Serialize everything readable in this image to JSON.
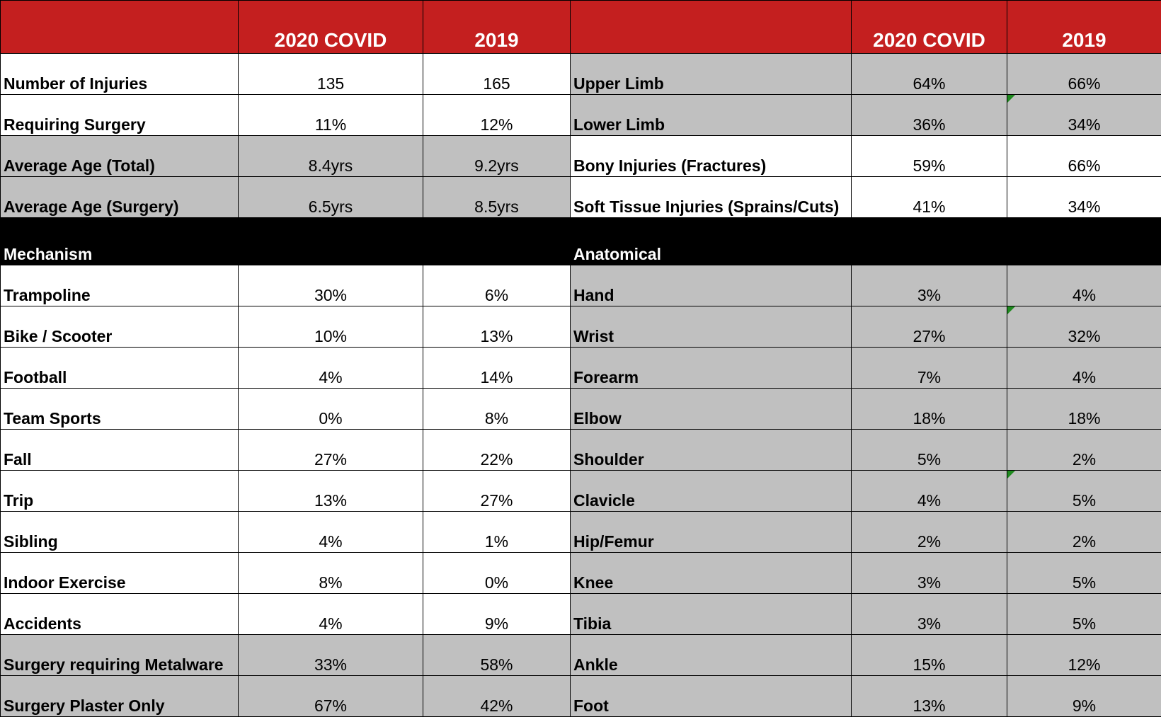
{
  "header": {
    "col_a": "",
    "col_b": "2020 COVID",
    "col_c": "2019",
    "col_d": "",
    "col_e": "2020 COVID",
    "col_f": "2019"
  },
  "summary_rows": [
    {
      "left_label": "Number of Injuries",
      "left_2020": "135",
      "left_2019": "165",
      "right_label": "Upper Limb",
      "right_2020": "64%",
      "right_2019": "66%"
    },
    {
      "left_label": "Requiring Surgery",
      "left_2020": "11%",
      "left_2019": "12%",
      "right_label": "Lower Limb",
      "right_2020": "36%",
      "right_2019": "34%"
    },
    {
      "left_label": "Average Age (Total)",
      "left_2020": "8.4yrs",
      "left_2019": "9.2yrs",
      "right_label": "Bony Injuries (Fractures)",
      "right_2020": "59%",
      "right_2019": "66%"
    },
    {
      "left_label": "Average Age (Surgery)",
      "left_2020": "6.5yrs",
      "left_2019": "8.5yrs",
      "right_label": "Soft Tissue Injuries (Sprains/Cuts)",
      "right_2020": "41%",
      "right_2019": "34%"
    }
  ],
  "section": {
    "left_title": "Mechanism",
    "right_title": "Anatomical"
  },
  "detail_rows": [
    {
      "left_label": "Trampoline",
      "left_2020": "30%",
      "left_2019": "6%",
      "right_label": "Hand",
      "right_2020": "3%",
      "right_2019": "4%"
    },
    {
      "left_label": "Bike / Scooter",
      "left_2020": "10%",
      "left_2019": "13%",
      "right_label": "Wrist",
      "right_2020": "27%",
      "right_2019": "32%"
    },
    {
      "left_label": "Football",
      "left_2020": "4%",
      "left_2019": "14%",
      "right_label": "Forearm",
      "right_2020": "7%",
      "right_2019": "4%"
    },
    {
      "left_label": "Team Sports",
      "left_2020": "0%",
      "left_2019": "8%",
      "right_label": "Elbow",
      "right_2020": "18%",
      "right_2019": "18%"
    },
    {
      "left_label": "Fall",
      "left_2020": "27%",
      "left_2019": "22%",
      "right_label": "Shoulder",
      "right_2020": "5%",
      "right_2019": "2%"
    },
    {
      "left_label": "Trip",
      "left_2020": "13%",
      "left_2019": "27%",
      "right_label": "Clavicle",
      "right_2020": "4%",
      "right_2019": "5%"
    },
    {
      "left_label": "Sibling",
      "left_2020": "4%",
      "left_2019": "1%",
      "right_label": "Hip/Femur",
      "right_2020": "2%",
      "right_2019": "2%"
    },
    {
      "left_label": "Indoor Exercise",
      "left_2020": "8%",
      "left_2019": "0%",
      "right_label": "Knee",
      "right_2020": "3%",
      "right_2019": "5%"
    },
    {
      "left_label": "Accidents",
      "left_2020": "4%",
      "left_2019": "9%",
      "right_label": "Tibia",
      "right_2020": "3%",
      "right_2019": "5%"
    },
    {
      "left_label": "Surgery requiring Metalware",
      "left_2020": "33%",
      "left_2019": "58%",
      "right_label": "Ankle",
      "right_2020": "15%",
      "right_2019": "12%"
    },
    {
      "left_label": "Surgery Plaster Only",
      "left_2020": "67%",
      "left_2019": "42%",
      "right_label": "Foot",
      "right_2020": "13%",
      "right_2019": "9%"
    }
  ],
  "colors": {
    "header_red": "#c41f1f",
    "cell_gray": "#c0c0c0",
    "section_black": "#000000",
    "comment_flag_green": "#1f8a1f"
  }
}
